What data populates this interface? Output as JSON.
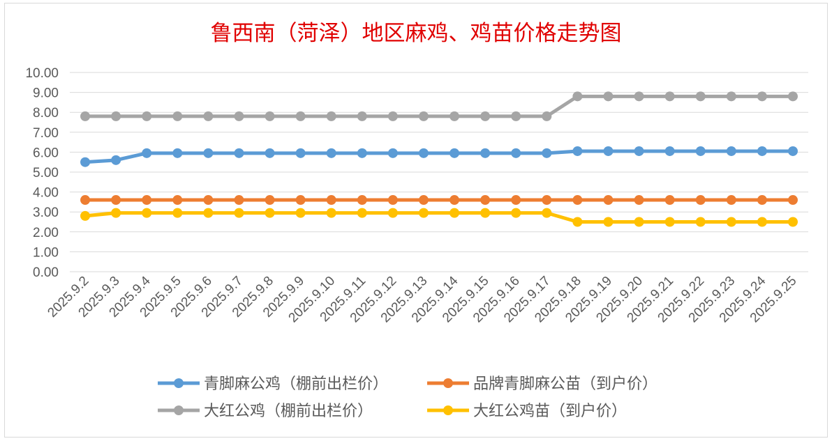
{
  "chart_data": {
    "type": "line",
    "title": "鲁西南（菏泽）地区麻鸡、鸡苗价格走势图",
    "xlabel": "",
    "ylabel": "",
    "ylim": [
      0,
      10
    ],
    "yticks": [
      "0.00",
      "1.00",
      "2.00",
      "3.00",
      "4.00",
      "5.00",
      "6.00",
      "7.00",
      "8.00",
      "9.00",
      "10.00"
    ],
    "grid": true,
    "legend_position": "bottom",
    "categories": [
      "2025.9.2",
      "2025.9.3",
      "2025.9.4",
      "2025.9.5",
      "2025.9.6",
      "2025.9.7",
      "2025.9.8",
      "2025.9.9",
      "2025.9.10",
      "2025.9.11",
      "2025.9.12",
      "2025.9.13",
      "2025.9.14",
      "2025.9.15",
      "2025.9.16",
      "2025.9.17",
      "2025.9.18",
      "2025.9.19",
      "2025.9.20",
      "2025.9.21",
      "2025.9.22",
      "2025.9.23",
      "2025.9.24",
      "2025.9.25"
    ],
    "series": [
      {
        "name": "青脚麻公鸡（棚前出栏价）",
        "color": "#5b9bd5",
        "values": [
          5.5,
          5.6,
          5.95,
          5.95,
          5.95,
          5.95,
          5.95,
          5.95,
          5.95,
          5.95,
          5.95,
          5.95,
          5.95,
          5.95,
          5.95,
          5.95,
          6.05,
          6.05,
          6.05,
          6.05,
          6.05,
          6.05,
          6.05,
          6.05
        ]
      },
      {
        "name": "品牌青脚麻公苗（到户价）",
        "color": "#ed7d31",
        "values": [
          3.6,
          3.6,
          3.6,
          3.6,
          3.6,
          3.6,
          3.6,
          3.6,
          3.6,
          3.6,
          3.6,
          3.6,
          3.6,
          3.6,
          3.6,
          3.6,
          3.6,
          3.6,
          3.6,
          3.6,
          3.6,
          3.6,
          3.6,
          3.6
        ]
      },
      {
        "name": "大红公鸡（棚前出栏价）",
        "color": "#a5a5a5",
        "values": [
          7.8,
          7.8,
          7.8,
          7.8,
          7.8,
          7.8,
          7.8,
          7.8,
          7.8,
          7.8,
          7.8,
          7.8,
          7.8,
          7.8,
          7.8,
          7.8,
          8.8,
          8.8,
          8.8,
          8.8,
          8.8,
          8.8,
          8.8,
          8.8
        ]
      },
      {
        "name": "大红公鸡苗（到户价）",
        "color": "#ffc000",
        "values": [
          2.8,
          2.95,
          2.95,
          2.95,
          2.95,
          2.95,
          2.95,
          2.95,
          2.95,
          2.95,
          2.95,
          2.95,
          2.95,
          2.95,
          2.95,
          2.95,
          2.5,
          2.5,
          2.5,
          2.5,
          2.5,
          2.5,
          2.5,
          2.5
        ]
      }
    ]
  }
}
